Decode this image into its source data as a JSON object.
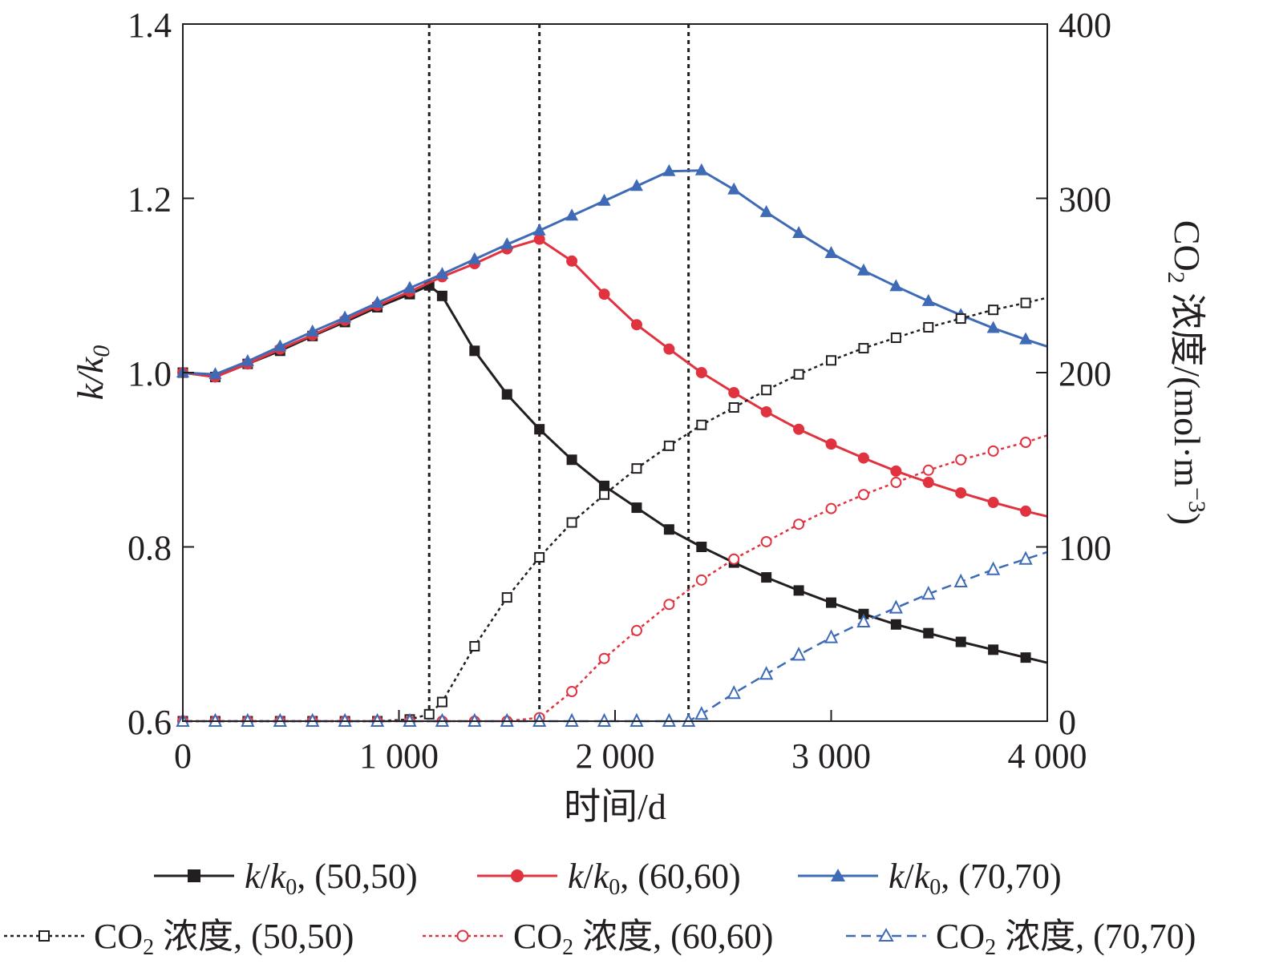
{
  "chart_data": {
    "type": "line",
    "xlabel": "时间/d",
    "ylabel_left": "k/k0",
    "ylabel_right": "CO2 浓度/(mol·m−3)",
    "xlim": [
      0,
      4000
    ],
    "ylim_left": [
      0.6,
      1.4
    ],
    "ylim_right": [
      0,
      400
    ],
    "x_ticks": [
      "0",
      "1 000",
      "2 000",
      "3 000",
      "4 000"
    ],
    "y_left_ticks": [
      "0.6",
      "0.8",
      "1.0",
      "1.2",
      "1.4"
    ],
    "y_right_ticks": [
      "0",
      "100",
      "200",
      "300",
      "400"
    ],
    "vertical_lines": [
      1140,
      1650,
      2340
    ],
    "grid": false,
    "legend_position": "bottom",
    "series": [
      {
        "name": "k/k0, (50,50)",
        "axis": "left",
        "color": "#231f20",
        "style": "solid",
        "marker": "square-filled",
        "x": [
          0,
          150,
          300,
          450,
          600,
          750,
          900,
          1050,
          1140,
          1200,
          1350,
          1500,
          1650,
          1800,
          1950,
          2100,
          2250,
          2400,
          2550,
          2700,
          2850,
          3000,
          3150,
          3300,
          3450,
          3600,
          3750,
          3900,
          4000
        ],
        "y": [
          1.0,
          0.995,
          1.01,
          1.025,
          1.042,
          1.058,
          1.075,
          1.09,
          1.1,
          1.088,
          1.025,
          0.975,
          0.935,
          0.9,
          0.87,
          0.845,
          0.82,
          0.8,
          0.782,
          0.765,
          0.75,
          0.736,
          0.723,
          0.711,
          0.701,
          0.691,
          0.682,
          0.673,
          0.667
        ]
      },
      {
        "name": "k/k0, (60,60)",
        "axis": "left",
        "color": "#e0333f",
        "style": "solid",
        "marker": "circle-filled",
        "x": [
          0,
          150,
          300,
          450,
          600,
          750,
          900,
          1050,
          1200,
          1350,
          1500,
          1650,
          1800,
          1950,
          2100,
          2250,
          2400,
          2550,
          2700,
          2850,
          3000,
          3150,
          3300,
          3450,
          3600,
          3750,
          3900,
          4000
        ],
        "y": [
          1.0,
          0.995,
          1.01,
          1.027,
          1.043,
          1.06,
          1.077,
          1.093,
          1.11,
          1.125,
          1.142,
          1.153,
          1.128,
          1.09,
          1.055,
          1.027,
          1.0,
          0.977,
          0.955,
          0.935,
          0.918,
          0.902,
          0.887,
          0.874,
          0.862,
          0.851,
          0.841,
          0.835
        ]
      },
      {
        "name": "k/k0, (70,70)",
        "axis": "left",
        "color": "#3f6bb6",
        "style": "solid",
        "marker": "triangle-filled",
        "x": [
          0,
          150,
          300,
          450,
          600,
          750,
          900,
          1050,
          1200,
          1350,
          1500,
          1650,
          1800,
          1950,
          2100,
          2250,
          2400,
          2550,
          2700,
          2850,
          3000,
          3150,
          3300,
          3450,
          3600,
          3750,
          3900,
          4000
        ],
        "y": [
          1.0,
          0.998,
          1.013,
          1.03,
          1.047,
          1.063,
          1.08,
          1.097,
          1.113,
          1.13,
          1.147,
          1.163,
          1.18,
          1.197,
          1.214,
          1.231,
          1.232,
          1.21,
          1.184,
          1.16,
          1.137,
          1.117,
          1.099,
          1.082,
          1.066,
          1.051,
          1.038,
          1.03
        ]
      },
      {
        "name": "CO2 浓度, (50,50)",
        "axis": "right",
        "color": "#231f20",
        "style": "dotted",
        "marker": "square-open",
        "x": [
          0,
          150,
          300,
          450,
          600,
          750,
          900,
          1050,
          1140,
          1200,
          1350,
          1500,
          1650,
          1800,
          1950,
          2100,
          2250,
          2400,
          2550,
          2700,
          2850,
          3000,
          3150,
          3300,
          3450,
          3600,
          3750,
          3900,
          4000
        ],
        "y": [
          0,
          0,
          0,
          0,
          0,
          0,
          0,
          1,
          4,
          11,
          43,
          71,
          94,
          114,
          130,
          145,
          158,
          170,
          180,
          190,
          199,
          207,
          214,
          220,
          226,
          231,
          236,
          240,
          243
        ]
      },
      {
        "name": "CO2 浓度, (60,60)",
        "axis": "right",
        "color": "#e0333f",
        "style": "dotted",
        "marker": "circle-open",
        "x": [
          0,
          150,
          300,
          450,
          600,
          750,
          900,
          1050,
          1200,
          1350,
          1500,
          1650,
          1800,
          1950,
          2100,
          2250,
          2400,
          2550,
          2700,
          2850,
          3000,
          3150,
          3300,
          3450,
          3600,
          3750,
          3900,
          4000
        ],
        "y": [
          0,
          0,
          0,
          0,
          0,
          0,
          0,
          0,
          0,
          0,
          0,
          2,
          17,
          36,
          52,
          67,
          81,
          93,
          103,
          113,
          122,
          130,
          137,
          144,
          150,
          155,
          160,
          164
        ]
      },
      {
        "name": "CO2 浓度, (70,70)",
        "axis": "right",
        "color": "#3f6bb6",
        "style": "dashed",
        "marker": "triangle-open",
        "x": [
          0,
          150,
          300,
          450,
          600,
          750,
          900,
          1050,
          1200,
          1350,
          1500,
          1650,
          1800,
          1950,
          2100,
          2250,
          2340,
          2400,
          2550,
          2700,
          2850,
          3000,
          3150,
          3300,
          3450,
          3600,
          3750,
          3900,
          4000
        ],
        "y": [
          0,
          0,
          0,
          0,
          0,
          0,
          0,
          0,
          0,
          0,
          0,
          0,
          0,
          0,
          0,
          0,
          0,
          4,
          16,
          27,
          38,
          48,
          57,
          65,
          73,
          80,
          87,
          93,
          97
        ]
      }
    ]
  }
}
